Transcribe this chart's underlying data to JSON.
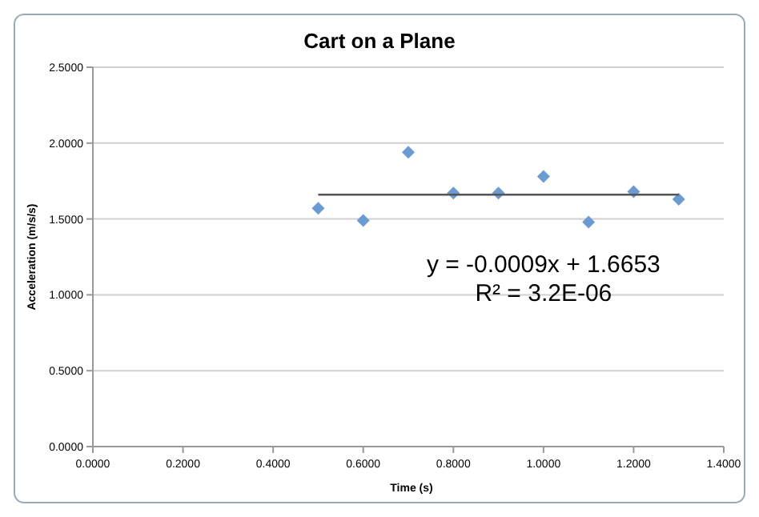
{
  "chart_data": {
    "type": "scatter",
    "title": "Cart on a Plane",
    "xlabel": "Time (s)",
    "ylabel": "Acceleration (m/s/s)",
    "xlim": [
      0,
      1.4
    ],
    "xticks": [
      {
        "value": 0,
        "label": "0.0000"
      },
      {
        "value": 0.2,
        "label": "0.2000"
      },
      {
        "value": 0.4,
        "label": "0.4000"
      },
      {
        "value": 0.6,
        "label": "0.6000"
      },
      {
        "value": 0.8,
        "label": "0.8000"
      },
      {
        "value": 1,
        "label": "1.0000"
      },
      {
        "value": 1.2,
        "label": "1.2000"
      },
      {
        "value": 1.4,
        "label": "1.4000"
      }
    ],
    "ylim": [
      0,
      2.5
    ],
    "yticks": [
      {
        "value": 0,
        "label": "0.0000"
      },
      {
        "value": 0.5,
        "label": "0.5000"
      },
      {
        "value": 1,
        "label": "1.0000"
      },
      {
        "value": 1.5,
        "label": "1.5000"
      },
      {
        "value": 2,
        "label": "2.0000"
      },
      {
        "value": 2.5,
        "label": "2.5000"
      }
    ],
    "grid": "y",
    "marker": "diamond",
    "series": [
      {
        "color": "#6b9bd1",
        "x": [
          0.5,
          0.6,
          0.7,
          0.8,
          0.9,
          1.0,
          1.1,
          1.2,
          1.3
        ],
        "values": [
          1.57,
          1.49,
          1.94,
          1.67,
          1.67,
          1.78,
          1.48,
          1.68,
          1.63
        ]
      },
      {
        "type": "line",
        "color": "#555555",
        "marker": "none",
        "x": [
          0.5,
          1.3
        ],
        "values": [
          1.66,
          1.66
        ]
      }
    ],
    "annotations": [
      "y = -0.0009x + 1.6653",
      "R² = 3.2E-06"
    ]
  }
}
